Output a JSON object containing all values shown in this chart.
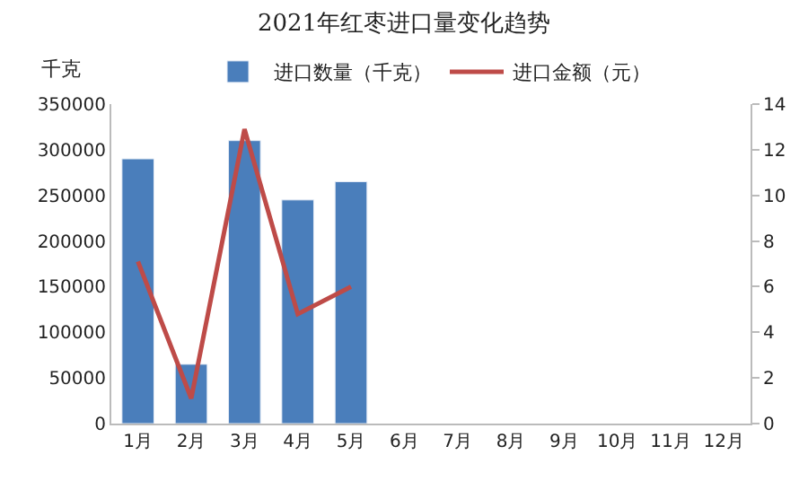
{
  "chart_data": {
    "type": "bar",
    "title": "2021年红枣进口量变化趋势",
    "ylabel": "千克",
    "categories": [
      "1月",
      "2月",
      "3月",
      "4月",
      "5月",
      "6月",
      "7月",
      "8月",
      "9月",
      "10月",
      "11月",
      "12月"
    ],
    "series": [
      {
        "name": "进口数量（千克）",
        "color": "#4a7ebb",
        "values": [
          290000,
          65000,
          310000,
          245000,
          265000,
          null,
          null,
          null,
          null,
          null,
          null,
          null
        ]
      },
      {
        "name": "进口金额（元）",
        "type": "line",
        "axis": "y2",
        "color": "#be4b48",
        "values": [
          7.1,
          1.1,
          12.9,
          4.8,
          6.0,
          null,
          null,
          null,
          null,
          null,
          null,
          null
        ]
      }
    ],
    "ylim": [
      0,
      350000
    ],
    "yticks": [
      0,
      50000,
      100000,
      150000,
      200000,
      250000,
      300000,
      350000
    ],
    "y2lim": [
      0,
      14
    ],
    "y2ticks": [
      0,
      2,
      4,
      6,
      8,
      10,
      12,
      14
    ],
    "grid": false,
    "legend": "top",
    "marker": "none",
    "line_style": "solid"
  }
}
